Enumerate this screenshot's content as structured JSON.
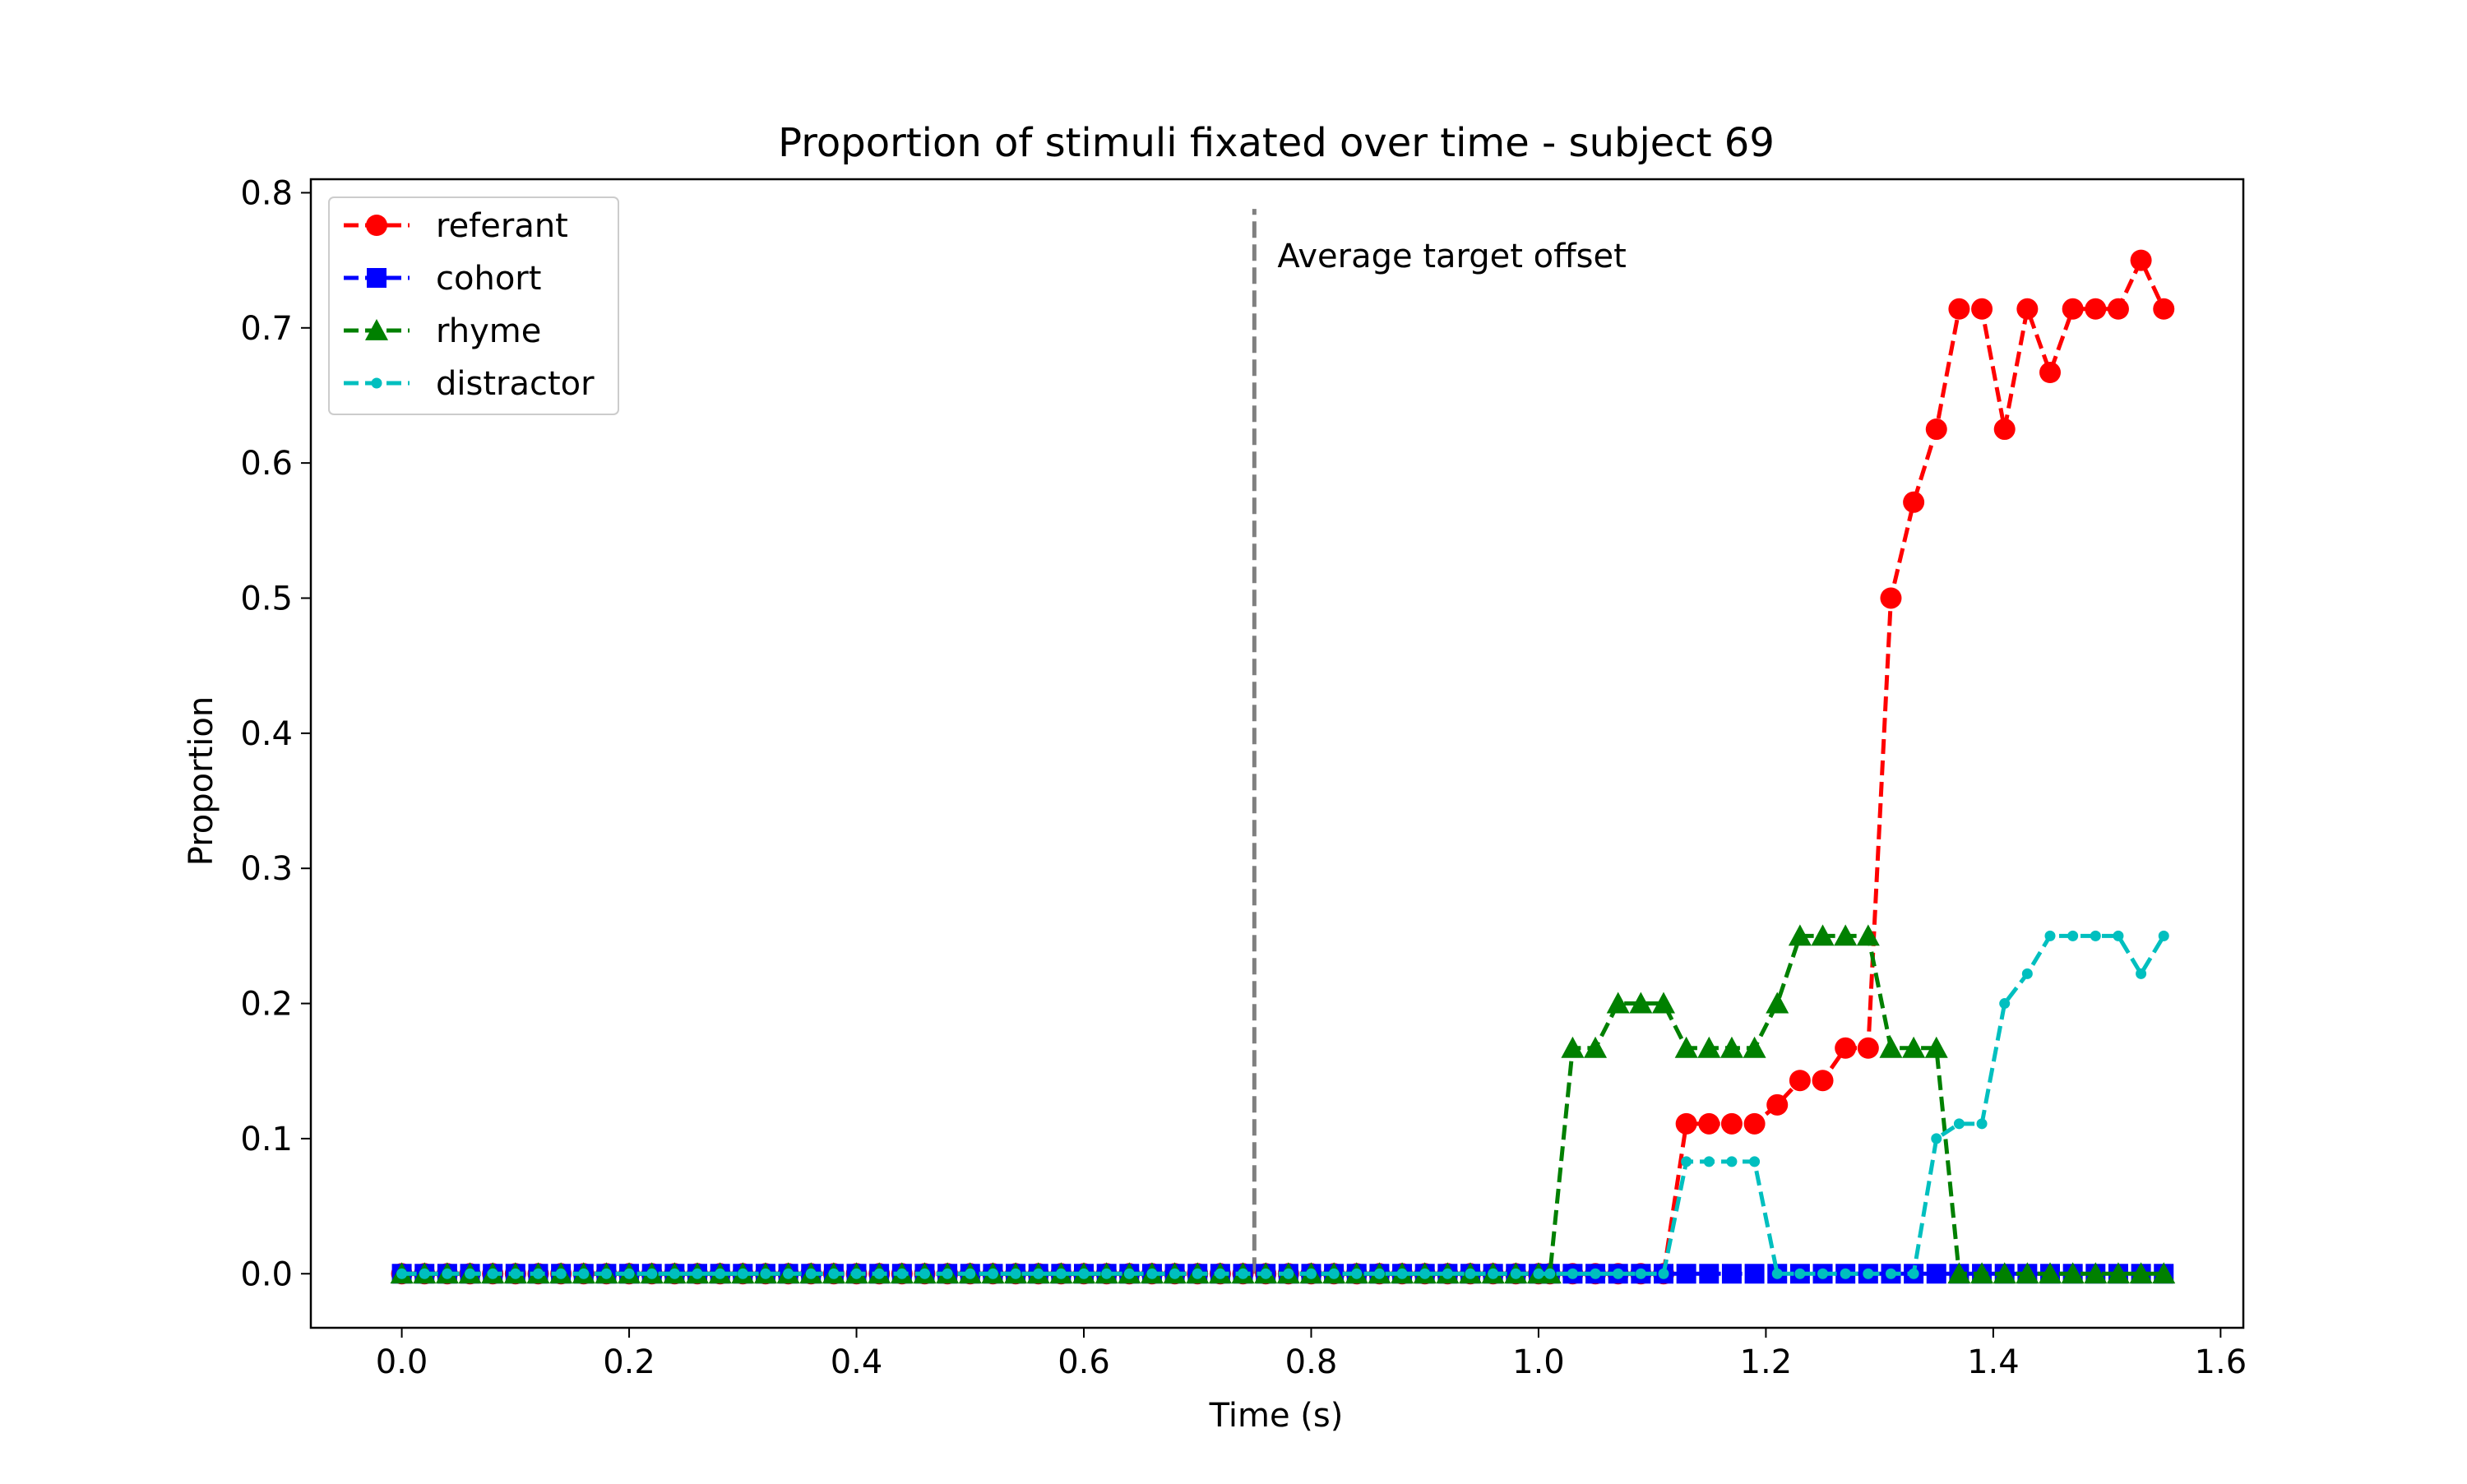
{
  "chart_data": {
    "type": "line",
    "title": "Proportion of stimuli fixated over time - subject 69",
    "xlabel": "Time (s)",
    "ylabel": "Proportion",
    "xlim": [
      -0.08,
      1.62
    ],
    "ylim": [
      -0.04,
      0.81
    ],
    "x_ticks": [
      "0.0",
      "0.2",
      "0.4",
      "0.6",
      "0.8",
      "1.0",
      "1.2",
      "1.4",
      "1.6"
    ],
    "x_tick_values": [
      0,
      0.2,
      0.4,
      0.6,
      0.8,
      1.0,
      1.2,
      1.4,
      1.6
    ],
    "y_ticks": [
      "0.0",
      "0.1",
      "0.2",
      "0.3",
      "0.4",
      "0.5",
      "0.6",
      "0.7",
      "0.8"
    ],
    "y_tick_values": [
      0,
      0.1,
      0.2,
      0.3,
      0.4,
      0.5,
      0.6,
      0.7,
      0.8
    ],
    "grid": false,
    "legend_position": "top-left",
    "annotation": {
      "text": "Average target offset",
      "x": 0.75
    },
    "x": [
      0.0,
      0.02,
      0.04,
      0.06,
      0.08,
      0.1,
      0.12,
      0.14,
      0.16,
      0.18,
      0.2,
      0.22,
      0.24,
      0.26,
      0.28,
      0.3,
      0.32,
      0.34,
      0.36,
      0.38,
      0.4,
      0.42,
      0.44,
      0.46,
      0.48,
      0.5,
      0.52,
      0.54,
      0.56,
      0.58,
      0.6,
      0.62,
      0.64,
      0.66,
      0.68,
      0.7,
      0.72,
      0.74,
      0.76,
      0.78,
      0.8,
      0.82,
      0.84,
      0.86,
      0.88,
      0.9,
      0.92,
      0.94,
      0.96,
      0.98,
      1.0,
      1.01,
      1.03,
      1.05,
      1.07,
      1.09,
      1.11,
      1.13,
      1.15,
      1.17,
      1.19,
      1.21,
      1.23,
      1.25,
      1.27,
      1.29,
      1.31,
      1.33,
      1.35,
      1.37,
      1.39,
      1.41,
      1.43,
      1.45,
      1.47,
      1.49,
      1.51,
      1.53,
      1.55
    ],
    "series": [
      {
        "name": "referant",
        "color": "#ff0000",
        "marker": "circle",
        "values": [
          0,
          0,
          0,
          0,
          0,
          0,
          0,
          0,
          0,
          0,
          0,
          0,
          0,
          0,
          0,
          0,
          0,
          0,
          0,
          0,
          0,
          0,
          0,
          0,
          0,
          0,
          0,
          0,
          0,
          0,
          0,
          0,
          0,
          0,
          0,
          0,
          0,
          0,
          0,
          0,
          0,
          0,
          0,
          0,
          0,
          0,
          0,
          0,
          0,
          0,
          0,
          0,
          0,
          0,
          0,
          0,
          0,
          0.111,
          0.111,
          0.111,
          0.111,
          0.125,
          0.143,
          0.143,
          0.167,
          0.167,
          0.5,
          0.571,
          0.625,
          0.714,
          0.714,
          0.625,
          0.714,
          0.667,
          0.714,
          0.714,
          0.714,
          0.75,
          0.714
        ]
      },
      {
        "name": "cohort",
        "color": "#0000ff",
        "marker": "square",
        "values": [
          0,
          0,
          0,
          0,
          0,
          0,
          0,
          0,
          0,
          0,
          0,
          0,
          0,
          0,
          0,
          0,
          0,
          0,
          0,
          0,
          0,
          0,
          0,
          0,
          0,
          0,
          0,
          0,
          0,
          0,
          0,
          0,
          0,
          0,
          0,
          0,
          0,
          0,
          0,
          0,
          0,
          0,
          0,
          0,
          0,
          0,
          0,
          0,
          0,
          0,
          0,
          0,
          0,
          0,
          0,
          0,
          0,
          0,
          0,
          0,
          0,
          0,
          0,
          0,
          0,
          0,
          0,
          0,
          0,
          0,
          0,
          0,
          0,
          0,
          0,
          0,
          0,
          0,
          0
        ]
      },
      {
        "name": "rhyme",
        "color": "#008000",
        "marker": "triangle",
        "values": [
          0,
          0,
          0,
          0,
          0,
          0,
          0,
          0,
          0,
          0,
          0,
          0,
          0,
          0,
          0,
          0,
          0,
          0,
          0,
          0,
          0,
          0,
          0,
          0,
          0,
          0,
          0,
          0,
          0,
          0,
          0,
          0,
          0,
          0,
          0,
          0,
          0,
          0,
          0,
          0,
          0,
          0,
          0,
          0,
          0,
          0,
          0,
          0,
          0,
          0,
          0,
          0,
          0.167,
          0.167,
          0.2,
          0.2,
          0.2,
          0.167,
          0.167,
          0.167,
          0.167,
          0.2,
          0.25,
          0.25,
          0.25,
          0.25,
          0.167,
          0.167,
          0.167,
          0,
          0,
          0,
          0,
          0,
          0,
          0,
          0,
          0,
          0
        ]
      },
      {
        "name": "distractor",
        "color": "#00bfbf",
        "marker": "dot",
        "values": [
          0,
          0,
          0,
          0,
          0,
          0,
          0,
          0,
          0,
          0,
          0,
          0,
          0,
          0,
          0,
          0,
          0,
          0,
          0,
          0,
          0,
          0,
          0,
          0,
          0,
          0,
          0,
          0,
          0,
          0,
          0,
          0,
          0,
          0,
          0,
          0,
          0,
          0,
          0,
          0,
          0,
          0,
          0,
          0,
          0,
          0,
          0,
          0,
          0,
          0,
          0,
          0,
          0,
          0,
          0,
          0,
          0,
          0.083,
          0.083,
          0.083,
          0.083,
          0,
          0,
          0,
          0,
          0,
          0,
          0,
          0.1,
          0.111,
          0.111,
          0.2,
          0.222,
          0.25,
          0.25,
          0.25,
          0.25,
          0.222,
          0.25
        ]
      }
    ]
  }
}
